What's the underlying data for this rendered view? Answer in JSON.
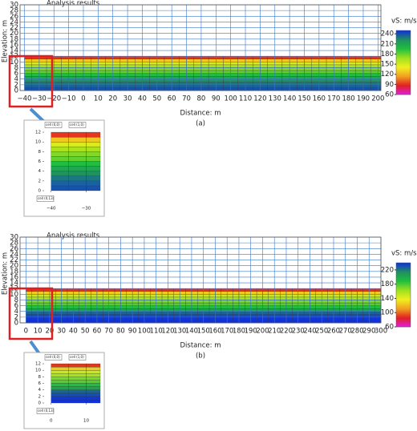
{
  "chart_data": [
    {
      "type": "heatmap",
      "title": "Analysis results",
      "y_label": "Elevation: m",
      "x_label": "Distance: m",
      "caption": "(a)",
      "xlim": [
        -43,
        202
      ],
      "xticks": [
        {
          "value": -40,
          "label": "−40"
        },
        {
          "value": -30,
          "label": "−30"
        },
        {
          "value": -20,
          "label": "−20"
        },
        {
          "value": -10,
          "label": "−10"
        },
        0,
        10,
        20,
        30,
        40,
        50,
        60,
        70,
        80,
        90,
        100,
        110,
        120,
        130,
        140,
        150,
        160,
        170,
        180,
        190,
        200
      ],
      "ylim": [
        0,
        30
      ],
      "yticks": [
        0,
        2,
        4,
        6,
        8,
        10,
        12,
        14,
        16,
        18,
        20,
        22,
        24,
        26,
        28,
        30
      ],
      "grid": true,
      "grid_color": "#3a78c8",
      "layer_values": [
        240,
        236,
        230,
        222,
        210,
        198,
        182,
        175,
        165,
        150,
        128,
        92
      ],
      "colorbar_label": "vS: m/s",
      "clim": [
        60,
        250
      ],
      "colorbar_ticks": [
        60,
        90,
        120,
        150,
        180,
        210,
        240
      ],
      "colormap": [
        "#e020e0",
        "#e02020",
        "#f0a020",
        "#f0f020",
        "#a0e020",
        "#20c040",
        "#209060",
        "#1030e0"
      ],
      "inset": {
        "xlim": [
          -42,
          -26
        ],
        "ylim": [
          0,
          12.5
        ],
        "xticks": [
          {
            "value": -40,
            "label": "−40"
          },
          {
            "value": -30,
            "label": "−30"
          }
        ],
        "yticks": [
          0,
          2,
          4,
          6,
          8,
          10,
          12
        ],
        "annotations": [
          "cell (0,0)",
          "cell (1,0)",
          "cell (0,13)"
        ]
      }
    },
    {
      "type": "heatmap",
      "title": "Analysis results",
      "y_label": "Elevation: m",
      "x_label": "Distance: m",
      "caption": "(b)",
      "xlim": [
        -5,
        300
      ],
      "xticks": [
        0,
        10,
        20,
        30,
        40,
        50,
        60,
        70,
        80,
        90,
        100,
        110,
        120,
        130,
        140,
        150,
        160,
        170,
        180,
        190,
        200,
        210,
        220,
        230,
        240,
        250,
        260,
        270,
        280,
        290,
        300
      ],
      "ylim": [
        0,
        30
      ],
      "yticks": [
        0,
        2,
        4,
        6,
        8,
        10,
        12,
        14,
        16,
        18,
        20,
        22,
        24,
        26,
        28,
        30
      ],
      "grid": true,
      "grid_color": "#3a78c8",
      "layer_values": [
        240,
        238,
        232,
        226,
        205,
        190,
        178,
        170,
        160,
        150,
        125,
        90
      ],
      "colorbar_label": "vS: m/s",
      "clim": [
        60,
        240
      ],
      "colorbar_ticks": [
        60,
        100,
        140,
        180,
        220
      ],
      "colormap": [
        "#e020e0",
        "#e02020",
        "#f0a020",
        "#f0f020",
        "#a0e020",
        "#20c040",
        "#209060",
        "#1030e0"
      ],
      "inset": {
        "xlim": [
          -2,
          14
        ],
        "ylim": [
          0,
          12.5
        ],
        "xticks": [
          0,
          10
        ],
        "yticks": [
          0,
          2,
          4,
          6,
          8,
          10,
          12
        ],
        "annotations": [
          "cell (0,0)",
          "cell (1,0)",
          "cell (0,13)"
        ]
      }
    }
  ]
}
